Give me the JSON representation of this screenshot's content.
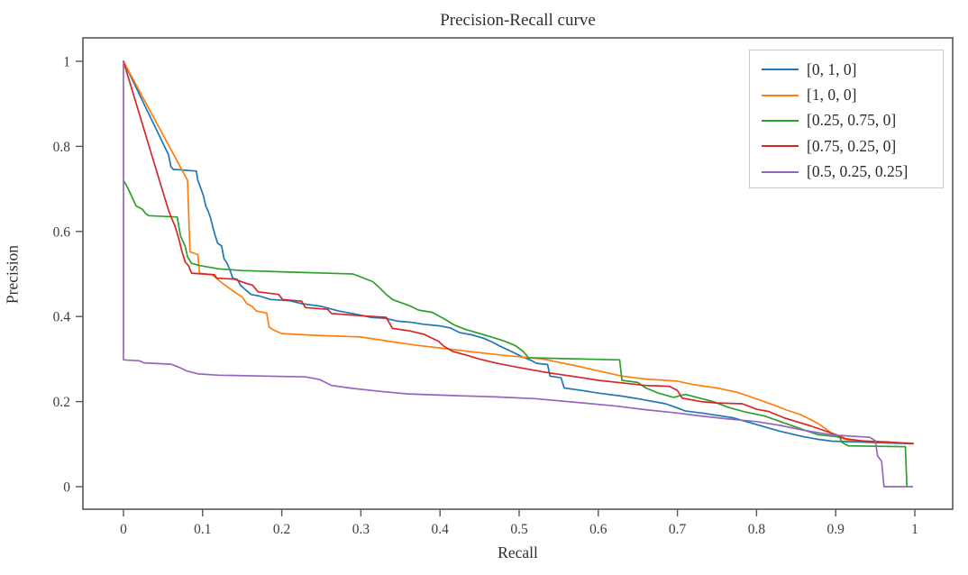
{
  "chart_data": {
    "type": "line",
    "title": "Precision-Recall curve",
    "xlabel": "Recall",
    "ylabel": "Precision",
    "xlim": [
      0,
      1
    ],
    "ylim": [
      0,
      1
    ],
    "grid": false,
    "legend_position": "upper right",
    "axis_color": "#57575a",
    "tick_text_color": "#3d3d3d",
    "x_ticks": [
      0,
      0.1,
      0.2,
      0.3,
      0.4,
      0.5,
      0.6,
      0.7,
      0.8,
      0.9,
      1
    ],
    "x_tick_labels": [
      "0",
      "0.1",
      "0.2",
      "0.3",
      "0.4",
      "0.5",
      "0.6",
      "0.7",
      "0.8",
      "0.9",
      "1"
    ],
    "y_ticks": [
      0,
      0.2,
      0.4,
      0.6,
      0.8,
      1
    ],
    "y_tick_labels": [
      "0",
      "0.2",
      "0.4",
      "0.6",
      "0.8",
      "1"
    ],
    "series": [
      {
        "name": "[0, 1, 0]",
        "color": "#1f77b4",
        "points": [
          [
            0,
            1
          ],
          [
            0.057,
            0.78
          ],
          [
            0.06,
            0.752
          ],
          [
            0.063,
            0.746
          ],
          [
            0.092,
            0.742
          ],
          [
            0.094,
            0.72
          ],
          [
            0.098,
            0.7
          ],
          [
            0.101,
            0.684
          ],
          [
            0.104,
            0.66
          ],
          [
            0.107,
            0.648
          ],
          [
            0.11,
            0.632
          ],
          [
            0.113,
            0.61
          ],
          [
            0.116,
            0.59
          ],
          [
            0.119,
            0.572
          ],
          [
            0.124,
            0.566
          ],
          [
            0.127,
            0.536
          ],
          [
            0.131,
            0.525
          ],
          [
            0.134,
            0.512
          ],
          [
            0.138,
            0.49
          ],
          [
            0.144,
            0.487
          ],
          [
            0.148,
            0.473
          ],
          [
            0.153,
            0.465
          ],
          [
            0.161,
            0.452
          ],
          [
            0.172,
            0.448
          ],
          [
            0.186,
            0.44
          ],
          [
            0.21,
            0.437
          ],
          [
            0.226,
            0.43
          ],
          [
            0.25,
            0.424
          ],
          [
            0.272,
            0.413
          ],
          [
            0.295,
            0.405
          ],
          [
            0.312,
            0.398
          ],
          [
            0.33,
            0.396
          ],
          [
            0.347,
            0.389
          ],
          [
            0.366,
            0.386
          ],
          [
            0.378,
            0.382
          ],
          [
            0.4,
            0.378
          ],
          [
            0.413,
            0.373
          ],
          [
            0.425,
            0.362
          ],
          [
            0.44,
            0.357
          ],
          [
            0.455,
            0.349
          ],
          [
            0.466,
            0.34
          ],
          [
            0.476,
            0.33
          ],
          [
            0.49,
            0.318
          ],
          [
            0.502,
            0.307
          ],
          [
            0.515,
            0.297
          ],
          [
            0.522,
            0.29
          ],
          [
            0.536,
            0.287
          ],
          [
            0.539,
            0.26
          ],
          [
            0.553,
            0.256
          ],
          [
            0.557,
            0.232
          ],
          [
            0.58,
            0.226
          ],
          [
            0.6,
            0.22
          ],
          [
            0.63,
            0.213
          ],
          [
            0.655,
            0.205
          ],
          [
            0.685,
            0.195
          ],
          [
            0.7,
            0.185
          ],
          [
            0.71,
            0.178
          ],
          [
            0.735,
            0.172
          ],
          [
            0.77,
            0.162
          ],
          [
            0.8,
            0.146
          ],
          [
            0.83,
            0.13
          ],
          [
            0.858,
            0.118
          ],
          [
            0.875,
            0.112
          ],
          [
            0.895,
            0.107
          ],
          [
            0.93,
            0.105
          ],
          [
            0.96,
            0.103
          ],
          [
            0.995,
            0.101
          ]
        ]
      },
      {
        "name": "[1, 0, 0]",
        "color": "#ff7f0e",
        "points": [
          [
            0,
            1
          ],
          [
            0.081,
            0.72
          ],
          [
            0.084,
            0.552
          ],
          [
            0.094,
            0.546
          ],
          [
            0.096,
            0.502
          ],
          [
            0.112,
            0.498
          ],
          [
            0.125,
            0.478
          ],
          [
            0.14,
            0.458
          ],
          [
            0.15,
            0.446
          ],
          [
            0.156,
            0.43
          ],
          [
            0.163,
            0.423
          ],
          [
            0.168,
            0.413
          ],
          [
            0.181,
            0.408
          ],
          [
            0.184,
            0.375
          ],
          [
            0.19,
            0.368
          ],
          [
            0.2,
            0.36
          ],
          [
            0.24,
            0.356
          ],
          [
            0.3,
            0.352
          ],
          [
            0.335,
            0.342
          ],
          [
            0.368,
            0.333
          ],
          [
            0.4,
            0.326
          ],
          [
            0.44,
            0.317
          ],
          [
            0.48,
            0.309
          ],
          [
            0.53,
            0.3
          ],
          [
            0.57,
            0.285
          ],
          [
            0.6,
            0.272
          ],
          [
            0.63,
            0.26
          ],
          [
            0.66,
            0.253
          ],
          [
            0.7,
            0.248
          ],
          [
            0.72,
            0.24
          ],
          [
            0.75,
            0.232
          ],
          [
            0.775,
            0.222
          ],
          [
            0.79,
            0.213
          ],
          [
            0.805,
            0.203
          ],
          [
            0.822,
            0.192
          ],
          [
            0.838,
            0.18
          ],
          [
            0.855,
            0.17
          ],
          [
            0.868,
            0.158
          ],
          [
            0.878,
            0.148
          ],
          [
            0.886,
            0.138
          ],
          [
            0.893,
            0.128
          ],
          [
            0.9,
            0.118
          ],
          [
            0.915,
            0.11
          ],
          [
            0.94,
            0.107
          ],
          [
            0.97,
            0.104
          ],
          [
            0.998,
            0.102
          ]
        ]
      },
      {
        "name": "[0.25, 0.75, 0]",
        "color": "#2ca02c",
        "points": [
          [
            0,
            0.72
          ],
          [
            0.006,
            0.7
          ],
          [
            0.016,
            0.66
          ],
          [
            0.024,
            0.652
          ],
          [
            0.028,
            0.642
          ],
          [
            0.032,
            0.637
          ],
          [
            0.068,
            0.634
          ],
          [
            0.072,
            0.59
          ],
          [
            0.078,
            0.565
          ],
          [
            0.081,
            0.54
          ],
          [
            0.086,
            0.525
          ],
          [
            0.096,
            0.52
          ],
          [
            0.12,
            0.512
          ],
          [
            0.15,
            0.508
          ],
          [
            0.2,
            0.505
          ],
          [
            0.29,
            0.5
          ],
          [
            0.315,
            0.482
          ],
          [
            0.325,
            0.465
          ],
          [
            0.332,
            0.452
          ],
          [
            0.34,
            0.44
          ],
          [
            0.35,
            0.433
          ],
          [
            0.362,
            0.425
          ],
          [
            0.373,
            0.415
          ],
          [
            0.39,
            0.41
          ],
          [
            0.405,
            0.395
          ],
          [
            0.418,
            0.38
          ],
          [
            0.432,
            0.37
          ],
          [
            0.45,
            0.36
          ],
          [
            0.465,
            0.352
          ],
          [
            0.48,
            0.343
          ],
          [
            0.495,
            0.332
          ],
          [
            0.505,
            0.318
          ],
          [
            0.512,
            0.303
          ],
          [
            0.627,
            0.298
          ],
          [
            0.63,
            0.25
          ],
          [
            0.65,
            0.245
          ],
          [
            0.66,
            0.232
          ],
          [
            0.676,
            0.22
          ],
          [
            0.695,
            0.21
          ],
          [
            0.71,
            0.217
          ],
          [
            0.745,
            0.2
          ],
          [
            0.765,
            0.186
          ],
          [
            0.785,
            0.176
          ],
          [
            0.81,
            0.166
          ],
          [
            0.833,
            0.151
          ],
          [
            0.85,
            0.14
          ],
          [
            0.865,
            0.13
          ],
          [
            0.878,
            0.122
          ],
          [
            0.905,
            0.117
          ],
          [
            0.908,
            0.104
          ],
          [
            0.916,
            0.096
          ],
          [
            0.988,
            0.094
          ],
          [
            0.99,
            0
          ]
        ]
      },
      {
        "name": "[0.75, 0.25, 0]",
        "color": "#d62728",
        "points": [
          [
            0,
            1
          ],
          [
            0.03,
            0.815
          ],
          [
            0.047,
            0.71
          ],
          [
            0.057,
            0.65
          ],
          [
            0.061,
            0.63
          ],
          [
            0.065,
            0.613
          ],
          [
            0.07,
            0.582
          ],
          [
            0.074,
            0.552
          ],
          [
            0.078,
            0.528
          ],
          [
            0.082,
            0.52
          ],
          [
            0.086,
            0.502
          ],
          [
            0.115,
            0.498
          ],
          [
            0.118,
            0.49
          ],
          [
            0.14,
            0.488
          ],
          [
            0.155,
            0.478
          ],
          [
            0.163,
            0.474
          ],
          [
            0.17,
            0.458
          ],
          [
            0.196,
            0.452
          ],
          [
            0.201,
            0.44
          ],
          [
            0.225,
            0.436
          ],
          [
            0.23,
            0.421
          ],
          [
            0.258,
            0.417
          ],
          [
            0.263,
            0.407
          ],
          [
            0.3,
            0.402
          ],
          [
            0.332,
            0.398
          ],
          [
            0.34,
            0.372
          ],
          [
            0.362,
            0.366
          ],
          [
            0.38,
            0.358
          ],
          [
            0.398,
            0.342
          ],
          [
            0.405,
            0.33
          ],
          [
            0.416,
            0.318
          ],
          [
            0.432,
            0.31
          ],
          [
            0.45,
            0.3
          ],
          [
            0.472,
            0.29
          ],
          [
            0.5,
            0.28
          ],
          [
            0.53,
            0.27
          ],
          [
            0.558,
            0.262
          ],
          [
            0.573,
            0.258
          ],
          [
            0.6,
            0.25
          ],
          [
            0.64,
            0.242
          ],
          [
            0.66,
            0.238
          ],
          [
            0.69,
            0.236
          ],
          [
            0.7,
            0.226
          ],
          [
            0.706,
            0.208
          ],
          [
            0.73,
            0.2
          ],
          [
            0.748,
            0.197
          ],
          [
            0.782,
            0.195
          ],
          [
            0.8,
            0.182
          ],
          [
            0.815,
            0.177
          ],
          [
            0.836,
            0.161
          ],
          [
            0.868,
            0.143
          ],
          [
            0.898,
            0.124
          ],
          [
            0.912,
            0.113
          ],
          [
            0.935,
            0.107
          ],
          [
            0.965,
            0.105
          ],
          [
            0.998,
            0.101
          ]
        ]
      },
      {
        "name": "[0.5, 0.25, 0.25]",
        "color": "#9467bd",
        "points": [
          [
            0,
            1
          ],
          [
            0,
            0.298
          ],
          [
            0.02,
            0.296
          ],
          [
            0.026,
            0.291
          ],
          [
            0.06,
            0.288
          ],
          [
            0.07,
            0.281
          ],
          [
            0.08,
            0.272
          ],
          [
            0.095,
            0.265
          ],
          [
            0.12,
            0.262
          ],
          [
            0.23,
            0.258
          ],
          [
            0.248,
            0.252
          ],
          [
            0.263,
            0.238
          ],
          [
            0.29,
            0.231
          ],
          [
            0.325,
            0.224
          ],
          [
            0.36,
            0.218
          ],
          [
            0.42,
            0.214
          ],
          [
            0.47,
            0.211
          ],
          [
            0.52,
            0.207
          ],
          [
            0.573,
            0.198
          ],
          [
            0.62,
            0.19
          ],
          [
            0.66,
            0.181
          ],
          [
            0.7,
            0.173
          ],
          [
            0.73,
            0.166
          ],
          [
            0.76,
            0.16
          ],
          [
            0.8,
            0.153
          ],
          [
            0.83,
            0.144
          ],
          [
            0.856,
            0.134
          ],
          [
            0.88,
            0.126
          ],
          [
            0.9,
            0.121
          ],
          [
            0.943,
            0.116
          ],
          [
            0.95,
            0.108
          ],
          [
            0.953,
            0.072
          ],
          [
            0.958,
            0.06
          ],
          [
            0.961,
            0
          ],
          [
            0.997,
            0
          ]
        ]
      }
    ]
  }
}
